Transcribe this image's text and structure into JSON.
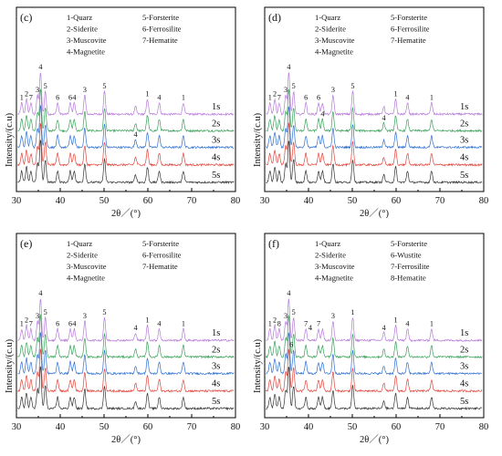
{
  "chart_data": [
    {
      "type": "line",
      "panel": "(c)",
      "xlabel": "2θ／(°)",
      "ylabel": "Intensity/(c.u)",
      "xlim": [
        30,
        80
      ],
      "xticks": [
        30,
        40,
        50,
        60,
        70,
        80
      ],
      "legend": [
        "1-Quarz",
        "2-Siderite",
        "3-Muscovite",
        "4-Magnetite",
        "5-Forsterite",
        "6-Ferrosilite",
        "7-Hematite"
      ],
      "series": [
        {
          "name": "1s",
          "color": "#b57ad8"
        },
        {
          "name": "2s",
          "color": "#3aa15a"
        },
        {
          "name": "3s",
          "color": "#2f6fd1"
        },
        {
          "name": "4s",
          "color": "#e0453c"
        },
        {
          "name": "5s",
          "color": "#333333"
        }
      ],
      "peak_labels": [
        {
          "text": "1",
          "x": 31.2,
          "series": 0
        },
        {
          "text": "2",
          "x": 32.3,
          "series": 0
        },
        {
          "text": "7",
          "x": 33.3,
          "series": 0
        },
        {
          "text": "3",
          "x": 34.8,
          "series": 0
        },
        {
          "text": "4",
          "x": 35.5,
          "series": 0
        },
        {
          "text": "5",
          "x": 36.6,
          "series": 0
        },
        {
          "text": "6",
          "x": 39.4,
          "series": 0
        },
        {
          "text": "6",
          "x": 42.3,
          "series": 0
        },
        {
          "text": "4",
          "x": 43.2,
          "series": 0
        },
        {
          "text": "3",
          "x": 45.6,
          "series": 0
        },
        {
          "text": "5",
          "x": 50.1,
          "series": 0
        },
        {
          "text": "1",
          "x": 59.9,
          "series": 0
        },
        {
          "text": "4",
          "x": 62.6,
          "series": 0
        },
        {
          "text": "1",
          "x": 68.1,
          "series": 0
        },
        {
          "text": "4",
          "x": 57.2,
          "series": 2
        }
      ]
    },
    {
      "type": "line",
      "panel": "(d)",
      "xlabel": "2θ／(°)",
      "ylabel": "Intensity/(c.u)",
      "xlim": [
        30,
        80
      ],
      "xticks": [
        30,
        40,
        50,
        60,
        70,
        80
      ],
      "legend": [
        "1-Quarz",
        "2-Siderite",
        "3-Muscovite",
        "4-Magnetite",
        "5-Forsterite",
        "6-Ferrosilite",
        "7-Hematite"
      ],
      "series": [
        {
          "name": "1s",
          "color": "#b57ad8"
        },
        {
          "name": "2s",
          "color": "#3aa15a"
        },
        {
          "name": "3s",
          "color": "#2f6fd1"
        },
        {
          "name": "4s",
          "color": "#e0453c"
        },
        {
          "name": "5s",
          "color": "#333333"
        }
      ],
      "peak_labels": [
        {
          "text": "1",
          "x": 31.2,
          "series": 0
        },
        {
          "text": "2",
          "x": 32.3,
          "series": 0
        },
        {
          "text": "7",
          "x": 33.3,
          "series": 0
        },
        {
          "text": "3",
          "x": 34.8,
          "series": 0
        },
        {
          "text": "4",
          "x": 35.5,
          "series": 0
        },
        {
          "text": "5",
          "x": 36.6,
          "series": 0
        },
        {
          "text": "6",
          "x": 39.4,
          "series": 0
        },
        {
          "text": "6",
          "x": 42.3,
          "series": 0
        },
        {
          "text": "3",
          "x": 45.6,
          "series": 0
        },
        {
          "text": "5",
          "x": 50.1,
          "series": 0
        },
        {
          "text": "1",
          "x": 59.9,
          "series": 0
        },
        {
          "text": "4",
          "x": 62.6,
          "series": 0
        },
        {
          "text": "1",
          "x": 68.1,
          "series": 0
        },
        {
          "text": "4",
          "x": 43.2,
          "series": 1
        },
        {
          "text": "4",
          "x": 57.2,
          "series": 1
        }
      ]
    },
    {
      "type": "line",
      "panel": "(e)",
      "xlabel": "2θ／(°)",
      "ylabel": "Intensity/(c.u)",
      "xlim": [
        30,
        80
      ],
      "xticks": [
        30,
        40,
        50,
        60,
        70,
        80
      ],
      "legend": [
        "1-Quarz",
        "2-Siderite",
        "3-Muscovite",
        "4-Magnetite",
        "5-Forsterite",
        "6-Ferrosilite",
        "7-Hematite"
      ],
      "series": [
        {
          "name": "1s",
          "color": "#b57ad8"
        },
        {
          "name": "2s",
          "color": "#3aa15a"
        },
        {
          "name": "3s",
          "color": "#2f6fd1"
        },
        {
          "name": "4s",
          "color": "#e0453c"
        },
        {
          "name": "5s",
          "color": "#333333"
        }
      ],
      "peak_labels": [
        {
          "text": "1",
          "x": 31.2,
          "series": 0
        },
        {
          "text": "2",
          "x": 32.3,
          "series": 0
        },
        {
          "text": "7",
          "x": 33.3,
          "series": 0
        },
        {
          "text": "3",
          "x": 34.8,
          "series": 0
        },
        {
          "text": "4",
          "x": 35.5,
          "series": 0
        },
        {
          "text": "5",
          "x": 36.6,
          "series": 0
        },
        {
          "text": "6",
          "x": 39.4,
          "series": 0
        },
        {
          "text": "6",
          "x": 42.3,
          "series": 0
        },
        {
          "text": "4",
          "x": 43.2,
          "series": 0
        },
        {
          "text": "3",
          "x": 45.6,
          "series": 0
        },
        {
          "text": "5",
          "x": 50.1,
          "series": 0
        },
        {
          "text": "4",
          "x": 57.2,
          "series": 0
        },
        {
          "text": "1",
          "x": 59.9,
          "series": 0
        },
        {
          "text": "4",
          "x": 62.6,
          "series": 0
        },
        {
          "text": "1",
          "x": 68.1,
          "series": 0
        }
      ]
    },
    {
      "type": "line",
      "panel": "(f)",
      "xlabel": "2θ／(°)",
      "ylabel": "Intensity/(c.u)",
      "xlim": [
        30,
        80
      ],
      "xticks": [
        30,
        40,
        50,
        60,
        70,
        80
      ],
      "legend": [
        "1-Quarz",
        "2-Siderite",
        "3-Muscovite",
        "4-Magnetite",
        "5-Forsterite",
        "6-Wustite",
        "7-Ferrosilite",
        "8-Hematite"
      ],
      "series": [
        {
          "name": "1s",
          "color": "#b57ad8"
        },
        {
          "name": "2s",
          "color": "#3aa15a"
        },
        {
          "name": "3s",
          "color": "#2f6fd1"
        },
        {
          "name": "4s",
          "color": "#e0453c"
        },
        {
          "name": "5s",
          "color": "#333333"
        }
      ],
      "peak_labels": [
        {
          "text": "1",
          "x": 31.2,
          "series": 0
        },
        {
          "text": "2",
          "x": 32.3,
          "series": 0
        },
        {
          "text": "8",
          "x": 33.3,
          "series": 0
        },
        {
          "text": "3",
          "x": 34.8,
          "series": 0
        },
        {
          "text": "4",
          "x": 35.5,
          "series": 0
        },
        {
          "text": "5",
          "x": 36.6,
          "series": 0
        },
        {
          "text": "7",
          "x": 39.4,
          "series": 0
        },
        {
          "text": "4",
          "x": 40.4,
          "series": 0
        },
        {
          "text": "7",
          "x": 42.3,
          "series": 0
        },
        {
          "text": "3",
          "x": 45.6,
          "series": 0
        },
        {
          "text": "1",
          "x": 50.1,
          "series": 0
        },
        {
          "text": "4",
          "x": 57.2,
          "series": 0
        },
        {
          "text": "1",
          "x": 59.9,
          "series": 0
        },
        {
          "text": "4",
          "x": 62.6,
          "series": 0
        },
        {
          "text": "1",
          "x": 68.1,
          "series": 0
        },
        {
          "text": "6",
          "x": 36.1,
          "series": 1
        }
      ]
    }
  ]
}
